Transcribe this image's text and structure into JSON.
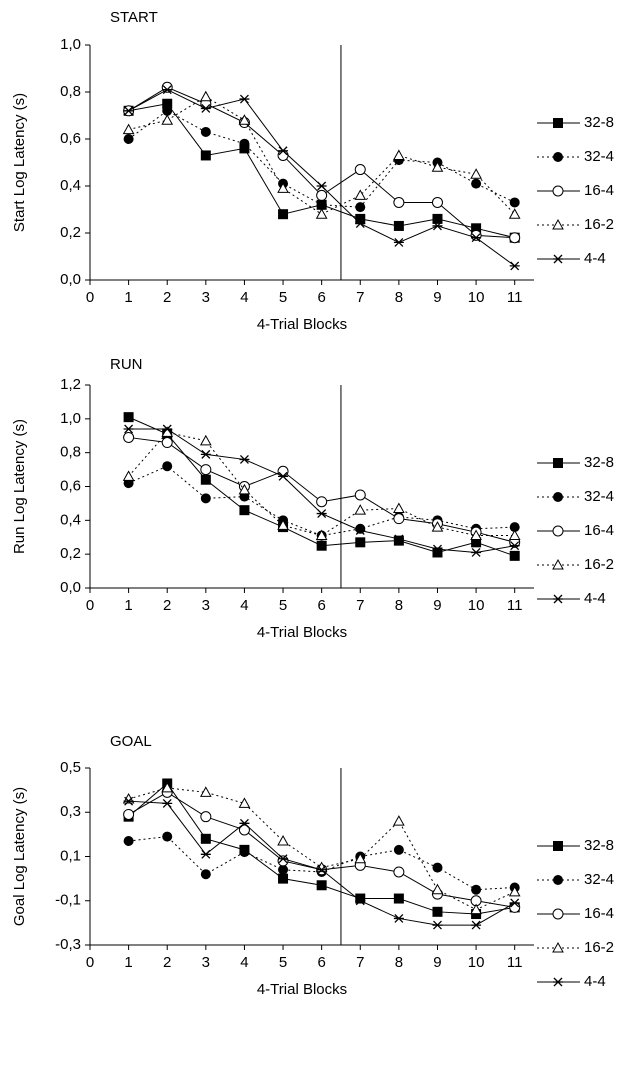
{
  "chart_data": [
    {
      "type": "line",
      "title": "START",
      "xlabel": "4-Trial Blocks",
      "ylabel": "Start Log Latency (s)",
      "x": [
        1,
        2,
        3,
        4,
        5,
        6,
        7,
        8,
        9,
        10,
        11
      ],
      "xlim": [
        0,
        11.5
      ],
      "xticks": [
        0,
        1,
        2,
        3,
        4,
        5,
        6,
        7,
        8,
        9,
        10,
        11
      ],
      "ylim": [
        0,
        1
      ],
      "yticks": [
        {
          "value": 0,
          "label": "0,0"
        },
        {
          "value": 0.2,
          "label": "0,2"
        },
        {
          "value": 0.4,
          "label": "0,4"
        },
        {
          "value": 0.6,
          "label": "0,6"
        },
        {
          "value": 0.8,
          "label": "0,8"
        },
        {
          "value": 1,
          "label": "1,0"
        }
      ],
      "vline": 6.5,
      "series": [
        {
          "name": "32-8",
          "color": "#000000",
          "marker": "square-filled",
          "line_style": "solid",
          "values": [
            0.72,
            0.75,
            0.53,
            0.56,
            0.28,
            0.32,
            0.26,
            0.23,
            0.26,
            0.22,
            0.18
          ]
        },
        {
          "name": "32-4",
          "color": "#000000",
          "marker": "circle-filled",
          "line_style": "dotted",
          "values": [
            0.6,
            0.72,
            0.63,
            0.58,
            0.41,
            0.32,
            0.31,
            0.51,
            0.5,
            0.41,
            0.33
          ]
        },
        {
          "name": "16-4",
          "color": "#000000",
          "marker": "circle-open",
          "line_style": "solid",
          "values": [
            0.72,
            0.82,
            0.75,
            0.67,
            0.53,
            0.36,
            0.47,
            0.33,
            0.33,
            0.19,
            0.18
          ]
        },
        {
          "name": "16-2",
          "color": "#000000",
          "marker": "triangle-open",
          "line_style": "dotted",
          "values": [
            0.64,
            0.68,
            0.78,
            0.68,
            0.39,
            0.28,
            0.36,
            0.53,
            0.48,
            0.45,
            0.28
          ]
        },
        {
          "name": "4-4",
          "color": "#000000",
          "marker": "star",
          "line_style": "solid",
          "values": [
            0.72,
            0.81,
            0.73,
            0.77,
            0.55,
            0.4,
            0.24,
            0.16,
            0.23,
            0.18,
            0.06
          ]
        }
      ]
    },
    {
      "type": "line",
      "title": "RUN",
      "xlabel": "4-Trial Blocks",
      "ylabel": "Run Log Latency (s)",
      "x": [
        1,
        2,
        3,
        4,
        5,
        6,
        7,
        8,
        9,
        10,
        11
      ],
      "xlim": [
        0,
        11.5
      ],
      "xticks": [
        0,
        1,
        2,
        3,
        4,
        5,
        6,
        7,
        8,
        9,
        10,
        11
      ],
      "ylim": [
        0,
        1.2
      ],
      "yticks": [
        {
          "value": 0,
          "label": "0,0"
        },
        {
          "value": 0.2,
          "label": "0,2"
        },
        {
          "value": 0.4,
          "label": "0,4"
        },
        {
          "value": 0.6,
          "label": "0,6"
        },
        {
          "value": 0.8,
          "label": "0,8"
        },
        {
          "value": 1,
          "label": "1,0"
        },
        {
          "value": 1.2,
          "label": "1,2"
        }
      ],
      "vline": 6.5,
      "series": [
        {
          "name": "32-8",
          "color": "#000000",
          "marker": "square-filled",
          "line_style": "solid",
          "values": [
            1.01,
            0.91,
            0.64,
            0.46,
            0.36,
            0.25,
            0.27,
            0.28,
            0.21,
            0.27,
            0.19
          ]
        },
        {
          "name": "32-4",
          "color": "#000000",
          "marker": "circle-filled",
          "line_style": "dotted",
          "values": [
            0.62,
            0.72,
            0.53,
            0.54,
            0.4,
            0.31,
            0.35,
            0.42,
            0.4,
            0.35,
            0.36
          ]
        },
        {
          "name": "16-4",
          "color": "#000000",
          "marker": "circle-open",
          "line_style": "solid",
          "values": [
            0.89,
            0.86,
            0.7,
            0.6,
            0.69,
            0.51,
            0.55,
            0.41,
            0.38,
            0.33,
            0.27
          ]
        },
        {
          "name": "16-2",
          "color": "#000000",
          "marker": "triangle-open",
          "line_style": "dotted",
          "values": [
            0.66,
            0.92,
            0.87,
            0.58,
            0.37,
            0.31,
            0.46,
            0.47,
            0.36,
            0.31,
            0.31
          ]
        },
        {
          "name": "4-4",
          "color": "#000000",
          "marker": "star",
          "line_style": "solid",
          "values": [
            0.94,
            0.94,
            0.79,
            0.76,
            0.66,
            0.44,
            0.34,
            0.29,
            0.23,
            0.21,
            0.25
          ]
        }
      ]
    },
    {
      "type": "line",
      "title": "GOAL",
      "xlabel": "4-Trial Blocks",
      "ylabel": "Goal Log Latency (s)",
      "x": [
        1,
        2,
        3,
        4,
        5,
        6,
        7,
        8,
        9,
        10,
        11
      ],
      "xlim": [
        0,
        11.5
      ],
      "xticks": [
        0,
        1,
        2,
        3,
        4,
        5,
        6,
        7,
        8,
        9,
        10,
        11
      ],
      "ylim": [
        -0.3,
        0.5
      ],
      "yticks": [
        {
          "value": -0.3,
          "label": "-0,3"
        },
        {
          "value": -0.1,
          "label": "-0,1"
        },
        {
          "value": 0.1,
          "label": "0,1"
        },
        {
          "value": 0.3,
          "label": "0,3"
        },
        {
          "value": 0.5,
          "label": "0,5"
        }
      ],
      "vline": 6.5,
      "series": [
        {
          "name": "32-8",
          "color": "#000000",
          "marker": "square-filled",
          "line_style": "solid",
          "values": [
            0.28,
            0.43,
            0.18,
            0.13,
            0.0,
            -0.03,
            -0.09,
            -0.09,
            -0.15,
            -0.16,
            -0.13
          ]
        },
        {
          "name": "32-4",
          "color": "#000000",
          "marker": "circle-filled",
          "line_style": "dotted",
          "values": [
            0.17,
            0.19,
            0.02,
            0.12,
            0.04,
            0.03,
            0.1,
            0.13,
            0.05,
            -0.05,
            -0.04
          ]
        },
        {
          "name": "16-4",
          "color": "#000000",
          "marker": "circle-open",
          "line_style": "solid",
          "values": [
            0.29,
            0.39,
            0.28,
            0.22,
            0.08,
            0.04,
            0.06,
            0.03,
            -0.07,
            -0.1,
            -0.13
          ]
        },
        {
          "name": "16-2",
          "color": "#000000",
          "marker": "triangle-open",
          "line_style": "dotted",
          "values": [
            0.36,
            0.41,
            0.39,
            0.34,
            0.17,
            0.05,
            0.09,
            0.26,
            -0.05,
            -0.14,
            -0.06
          ]
        },
        {
          "name": "4-4",
          "color": "#000000",
          "marker": "star",
          "line_style": "solid",
          "values": [
            0.35,
            0.34,
            0.11,
            0.25,
            0.09,
            0.04,
            -0.1,
            -0.18,
            -0.21,
            -0.21,
            -0.11
          ]
        }
      ]
    }
  ]
}
